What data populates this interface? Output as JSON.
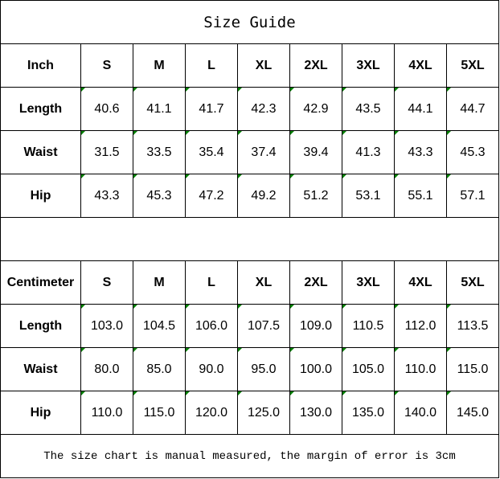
{
  "title": "Size Guide",
  "sizes": [
    "S",
    "M",
    "L",
    "XL",
    "2XL",
    "3XL",
    "4XL",
    "5XL"
  ],
  "inch": {
    "unit_label": "Inch",
    "rows": [
      {
        "label": "Length",
        "values": [
          "40.6",
          "41.1",
          "41.7",
          "42.3",
          "42.9",
          "43.5",
          "44.1",
          "44.7"
        ]
      },
      {
        "label": "Waist",
        "values": [
          "31.5",
          "33.5",
          "35.4",
          "37.4",
          "39.4",
          "41.3",
          "43.3",
          "45.3"
        ]
      },
      {
        "label": "Hip",
        "values": [
          "43.3",
          "45.3",
          "47.2",
          "49.2",
          "51.2",
          "53.1",
          "55.1",
          "57.1"
        ]
      }
    ]
  },
  "cm": {
    "unit_label": "Centimeter",
    "rows": [
      {
        "label": "Length",
        "values": [
          "103.0",
          "104.5",
          "106.0",
          "107.5",
          "109.0",
          "110.5",
          "112.0",
          "113.5"
        ]
      },
      {
        "label": "Waist",
        "values": [
          "80.0",
          "85.0",
          "90.0",
          "95.0",
          "100.0",
          "105.0",
          "110.0",
          "115.0"
        ]
      },
      {
        "label": "Hip",
        "values": [
          "110.0",
          "115.0",
          "120.0",
          "125.0",
          "130.0",
          "135.0",
          "140.0",
          "145.0"
        ]
      }
    ]
  },
  "note": "The size chart is manual measured, the margin of error is 3cm",
  "colors": {
    "error_indicator": "#008000",
    "border": "#000000"
  }
}
